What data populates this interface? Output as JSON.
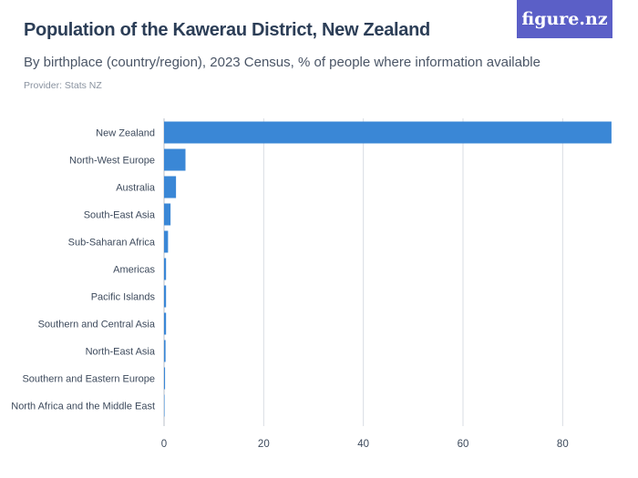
{
  "header": {
    "title": "Population of the Kawerau District, New Zealand",
    "subtitle": "By birthplace (country/region), 2023 Census, % of people where information available",
    "provider": "Provider: Stats NZ",
    "logo_text": "figure.nz"
  },
  "colors": {
    "bar": "#3a87d6",
    "grid": "#d9dde3",
    "axis_text": "#3d4a5c",
    "logo_bg": "#5b5fc7"
  },
  "chart_data": {
    "type": "bar",
    "orientation": "horizontal",
    "categories": [
      "New Zealand",
      "North-West Europe",
      "Australia",
      "South-East Asia",
      "Sub-Saharan Africa",
      "Americas",
      "Pacific Islands",
      "Southern and Central Asia",
      "North-East Asia",
      "Southern and Eastern Europe",
      "North Africa and the Middle East"
    ],
    "values": [
      89.8,
      4.3,
      2.4,
      1.3,
      0.8,
      0.4,
      0.4,
      0.4,
      0.3,
      0.2,
      0.1
    ],
    "xlim": [
      0,
      90
    ],
    "xticks": [
      0,
      20,
      40,
      60,
      80
    ],
    "grid": true
  }
}
